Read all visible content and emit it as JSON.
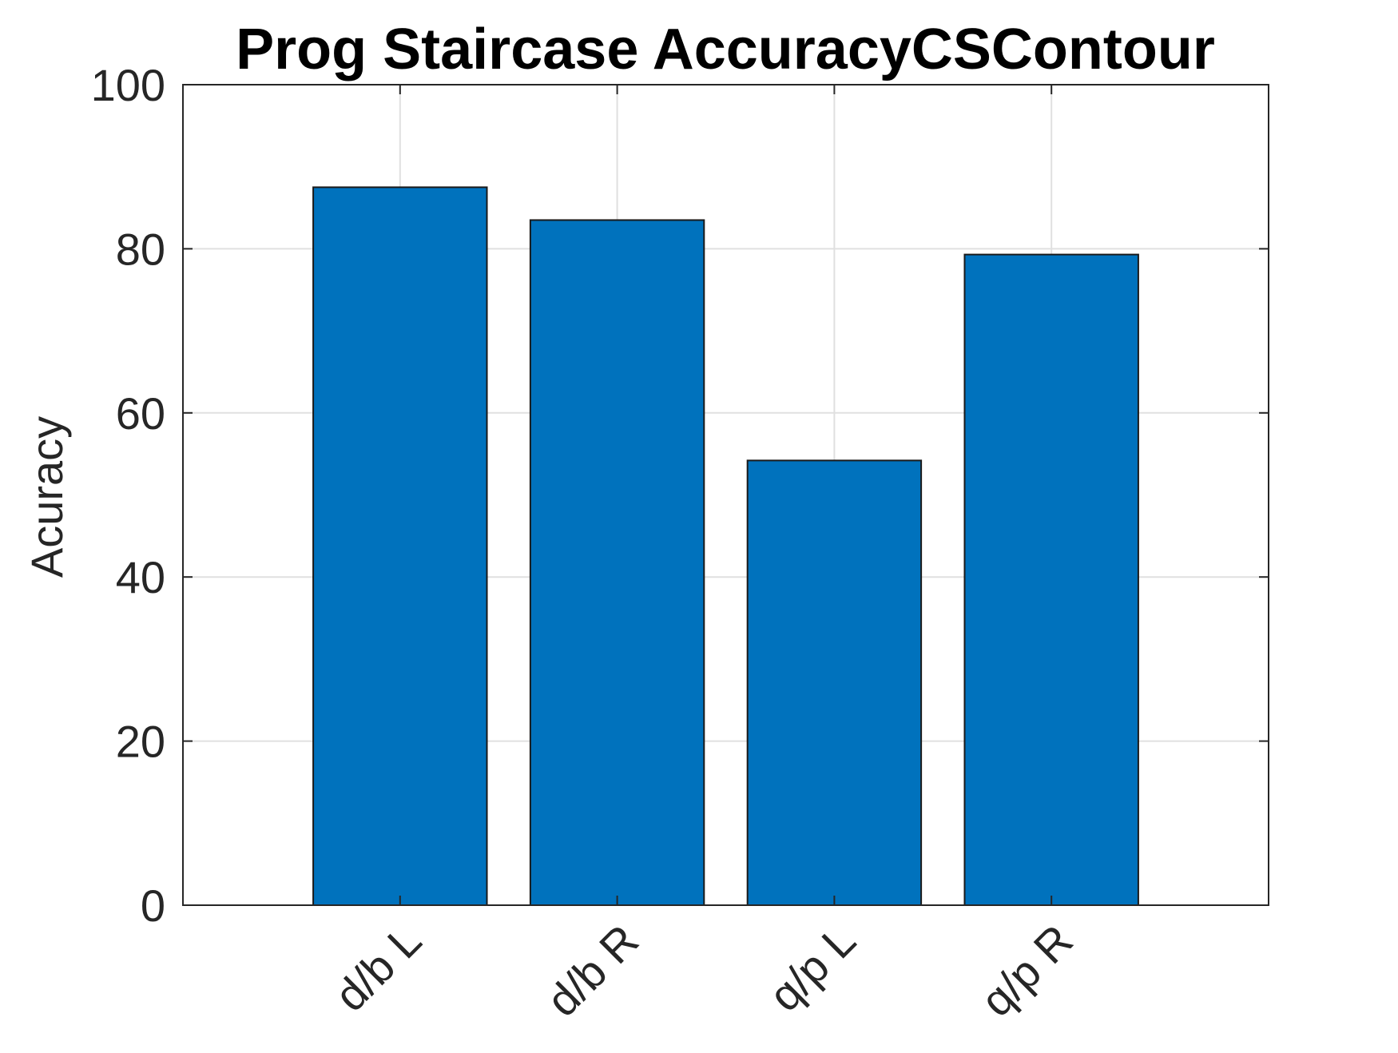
{
  "chart_data": {
    "type": "bar",
    "title": "Prog Staircase AccuracyCSContour",
    "xlabel": "",
    "ylabel": "Acuracy",
    "categories": [
      "d/b L",
      "d/b R",
      "q/p L",
      "q/p R"
    ],
    "values": [
      87.5,
      83.5,
      54.2,
      79.3
    ],
    "ylim": [
      0,
      100
    ],
    "xlim": [
      0,
      5
    ],
    "yticks": [
      0,
      20,
      40,
      60,
      80,
      100
    ],
    "grid": true,
    "bar_color": "#0072bd",
    "legend": "none"
  }
}
